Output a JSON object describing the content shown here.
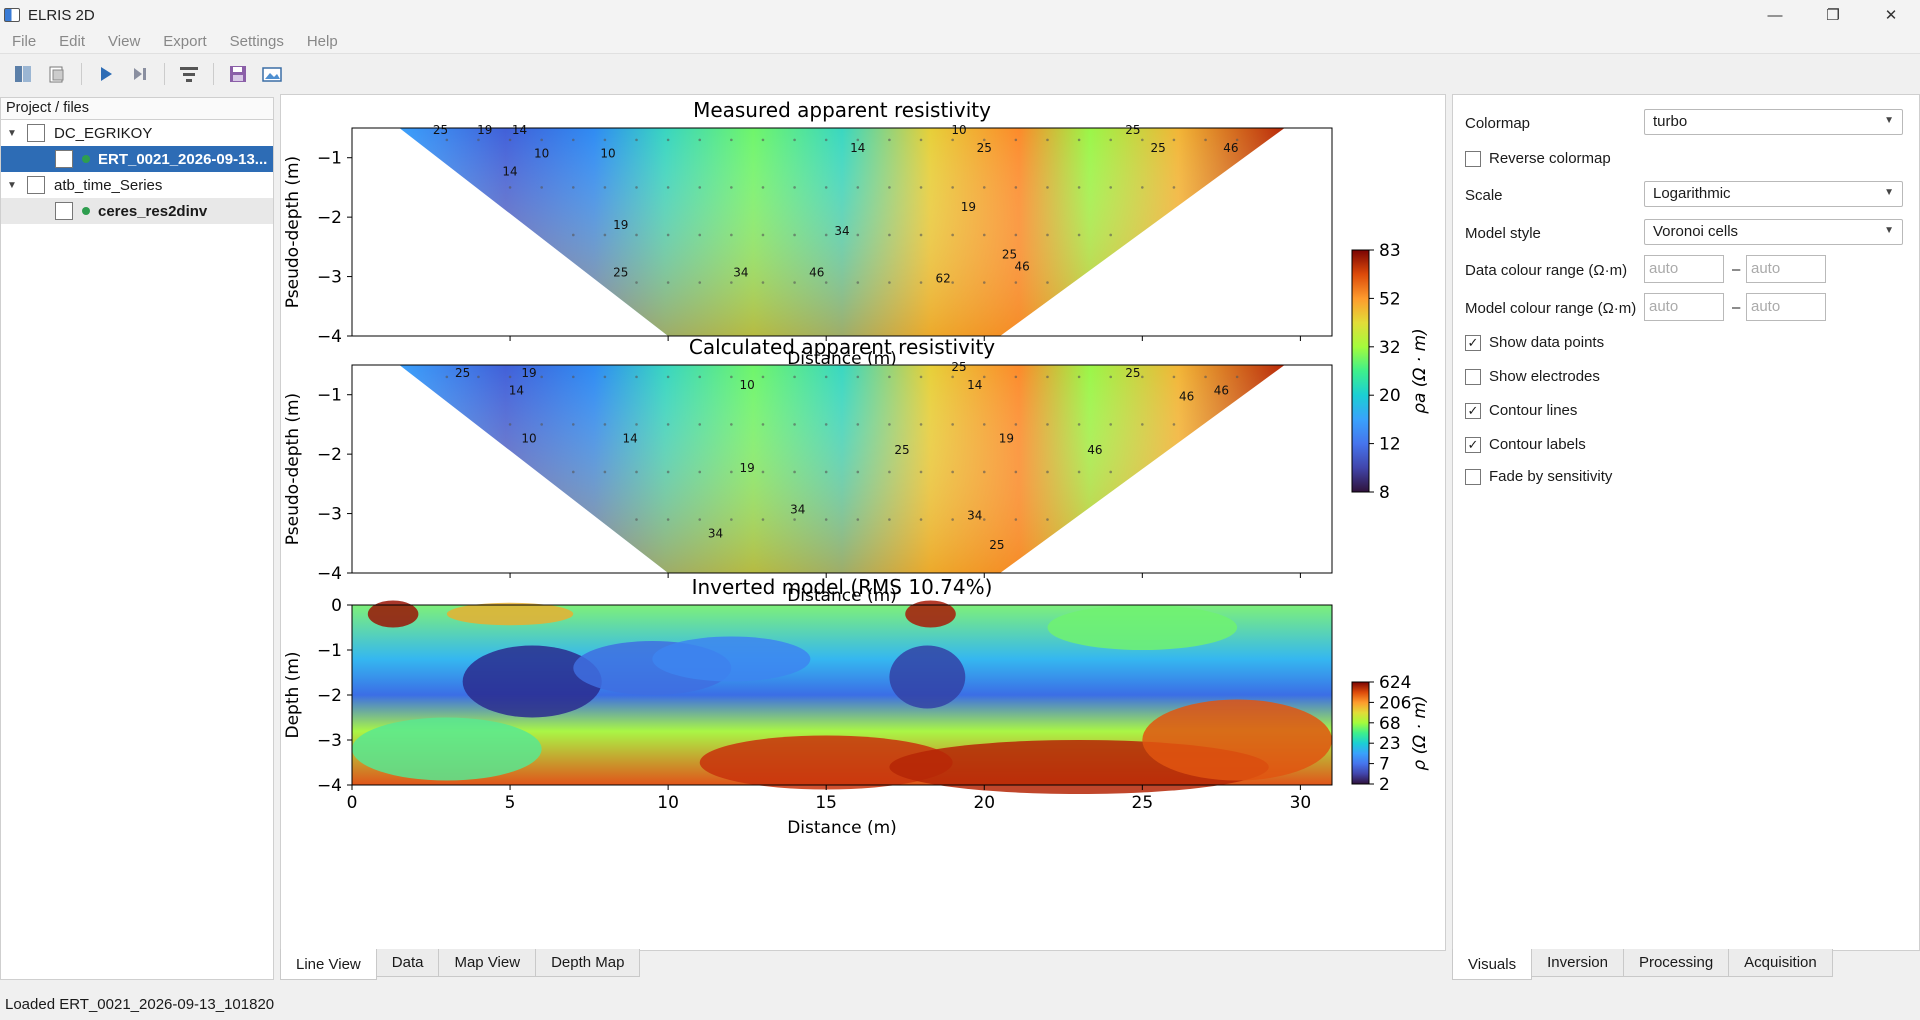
{
  "window": {
    "title": "ELRIS 2D",
    "minimize": "—",
    "maximize": "❐",
    "close": "✕"
  },
  "menu": [
    "File",
    "Edit",
    "View",
    "Export",
    "Settings",
    "Help"
  ],
  "toolbar": [
    "open-project-icon",
    "open-file-icon",
    "run-icon",
    "step-icon",
    "filter-icon",
    "save-icon",
    "export-image-icon"
  ],
  "project": {
    "header": "Project / files",
    "items": [
      {
        "label": "DC_EGRIKOY",
        "level": 0
      },
      {
        "label": "ERT_0021_2026-09-13...",
        "level": 1,
        "selected": true
      },
      {
        "label": "atb_time_Series",
        "level": 0
      },
      {
        "label": "ceres_res2dinv",
        "level": 1
      }
    ]
  },
  "plots": {
    "measured_title": "Measured apparent resistivity",
    "calculated_title": "Calculated apparent resistivity",
    "inverted_title": "Inverted model   (RMS 10.74%)",
    "pseudo_ylabel": "Pseudo-depth (m)",
    "depth_ylabel": "Depth (m)",
    "xlabel": "Distance (m)",
    "cbar1_label": "ρa (Ω · m)",
    "cbar2_label": "ρ (Ω · m)"
  },
  "chart_data": [
    {
      "type": "heatmap",
      "title": "Measured apparent resistivity",
      "xlabel": "Distance (m)",
      "ylabel": "Pseudo-depth (m)",
      "xlim": [
        0,
        31
      ],
      "ylim": [
        -4,
        -0.5
      ],
      "yticks": [
        -1,
        -2,
        -3,
        -4
      ],
      "colorbar_ticks": [
        8,
        12,
        20,
        32,
        52,
        83
      ],
      "colorbar_label": "ρa (Ω · m)",
      "colormap": "turbo",
      "contour_labels": [
        25,
        19,
        14,
        10,
        10,
        14,
        10,
        25,
        14,
        19,
        25,
        34,
        46,
        62,
        25,
        46,
        34,
        25,
        19,
        25,
        46
      ]
    },
    {
      "type": "heatmap",
      "title": "Calculated apparent resistivity",
      "xlabel": "Distance (m)",
      "ylabel": "Pseudo-depth (m)",
      "xlim": [
        0,
        31
      ],
      "ylim": [
        -4,
        -0.5
      ],
      "yticks": [
        -1,
        -2,
        -3,
        -4
      ],
      "colorbar_ticks": [
        8,
        12,
        20,
        32,
        52,
        83
      ],
      "colormap": "turbo",
      "contour_labels": [
        25,
        14,
        19,
        10,
        10,
        14,
        19,
        34,
        34,
        25,
        46,
        34,
        14,
        19,
        25,
        25,
        46,
        25,
        46
      ]
    },
    {
      "type": "heatmap",
      "title": "Inverted model   (RMS 10.74%)",
      "xlabel": "Distance (m)",
      "ylabel": "Depth (m)",
      "xlim": [
        0,
        31
      ],
      "ylim": [
        -4,
        0
      ],
      "xticks": [
        0,
        5,
        10,
        15,
        20,
        25,
        30
      ],
      "yticks": [
        0,
        -1,
        -2,
        -3,
        -4
      ],
      "colorbar_ticks": [
        2,
        7,
        23,
        68,
        206,
        624
      ],
      "colorbar_label": "ρ (Ω · m)",
      "colormap": "turbo"
    }
  ],
  "center_tabs": [
    "Line View",
    "Data",
    "Map View",
    "Depth Map"
  ],
  "settings": {
    "colormap_label": "Colormap",
    "colormap_value": "turbo",
    "reverse_label": "Reverse colormap",
    "reverse": false,
    "scale_label": "Scale",
    "scale_value": "Logarithmic",
    "model_style_label": "Model style",
    "model_style_value": "Voronoi cells",
    "data_range_label": "Data colour range (Ω·m)",
    "model_range_label": "Model colour range (Ω·m)",
    "range_placeholder": "auto",
    "range_dash": "–",
    "show_data_points_label": "Show data points",
    "show_data_points": true,
    "show_electrodes_label": "Show electrodes",
    "show_electrodes": false,
    "contour_lines_label": "Contour lines",
    "contour_lines": true,
    "contour_labels_label": "Contour labels",
    "contour_labels": true,
    "fade_label": "Fade by sensitivity",
    "fade": false
  },
  "right_tabs": [
    "Visuals",
    "Inversion",
    "Processing",
    "Acquisition"
  ],
  "status": "Loaded ERT_0021_2026-09-13_101820"
}
